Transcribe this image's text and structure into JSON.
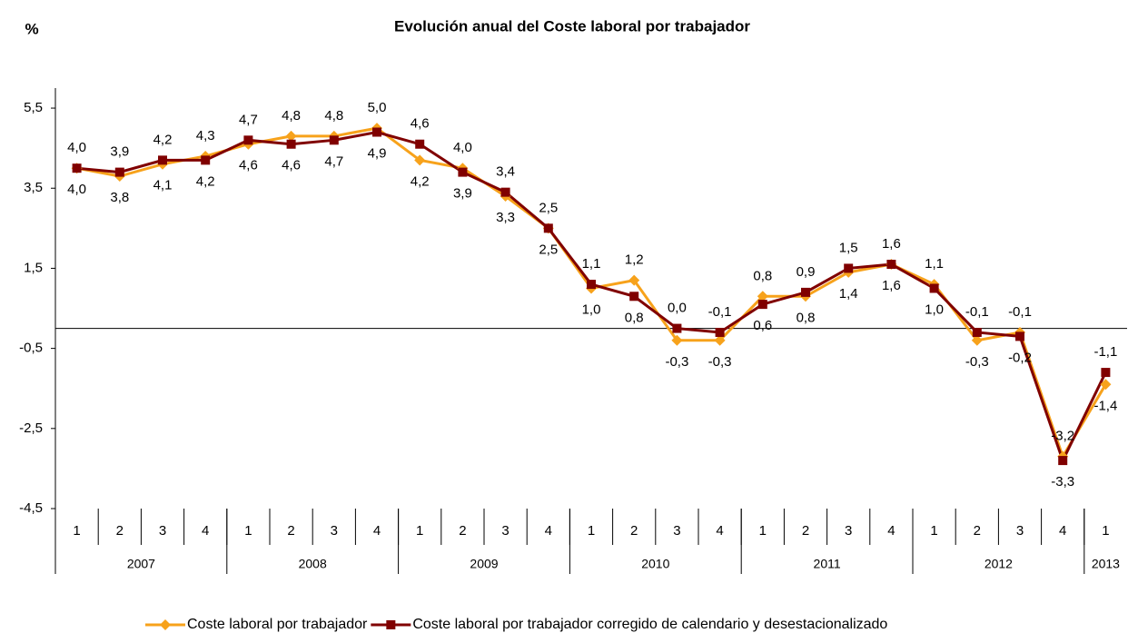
{
  "chart_data": {
    "type": "line",
    "title": "Evolución anual del Coste laboral por trabajador",
    "y_label": "%",
    "groups": [
      {
        "label": "2007",
        "categories": [
          "1",
          "2",
          "3",
          "4"
        ]
      },
      {
        "label": "2008",
        "categories": [
          "1",
          "2",
          "3",
          "4"
        ]
      },
      {
        "label": "2009",
        "categories": [
          "1",
          "2",
          "3",
          "4"
        ]
      },
      {
        "label": "2010",
        "categories": [
          "1",
          "2",
          "3",
          "4"
        ]
      },
      {
        "label": "2011",
        "categories": [
          "1",
          "2",
          "3",
          "4"
        ]
      },
      {
        "label": "2012",
        "categories": [
          "1",
          "2",
          "3",
          "4"
        ]
      },
      {
        "label": "2013",
        "categories": [
          "1"
        ]
      }
    ],
    "series": [
      {
        "name": "Coste laboral por trabajador",
        "color": "#f7a21b",
        "marker": "diamond",
        "values": [
          4.0,
          3.8,
          4.1,
          4.3,
          4.6,
          4.8,
          4.8,
          5.0,
          4.2,
          4.0,
          3.3,
          2.5,
          1.0,
          1.2,
          -0.3,
          -0.3,
          0.8,
          0.8,
          1.4,
          1.6,
          1.1,
          -0.3,
          -0.1,
          -3.2,
          -1.4
        ],
        "value_labels": [
          "4,0",
          "3,8",
          "4,1",
          "4,3",
          "4,6",
          "4,8",
          "4,8",
          "5,0",
          "4,2",
          "4,0",
          "3,3",
          "2,5",
          "1,0",
          "1,2",
          "-0,3",
          "-0,3",
          "0,8",
          "0,8",
          "1,4",
          "1,6",
          "1,1",
          "-0,3",
          "-0,1",
          "-3,2",
          "-1,4"
        ]
      },
      {
        "name": "Coste laboral por trabajador corregido de calendario y desestacionalizado",
        "color": "#800000",
        "marker": "square",
        "values": [
          4.0,
          3.9,
          4.2,
          4.2,
          4.7,
          4.6,
          4.7,
          4.9,
          4.6,
          3.9,
          3.4,
          2.5,
          1.1,
          0.8,
          0.0,
          -0.1,
          0.6,
          0.9,
          1.5,
          1.6,
          1.0,
          -0.1,
          -0.2,
          -3.3,
          -1.1
        ],
        "value_labels": [
          "4,0",
          "3,9",
          "4,2",
          "4,2",
          "4,7",
          "4,6",
          "4,7",
          "4,9",
          "4,6",
          "3,9",
          "3,4",
          "2,5",
          "1,1",
          "0,8",
          "0,0",
          "-0,1",
          "0,6",
          "0,9",
          "1,5",
          "1,6",
          "1,0",
          "-0,1",
          "-0,2",
          "-3,3",
          "-1,1"
        ]
      }
    ],
    "ylim": [
      -4.5,
      6.0
    ],
    "yticks": [
      {
        "value": -4.5,
        "label": "-4,5"
      },
      {
        "value": -2.5,
        "label": "-2,5"
      },
      {
        "value": -0.5,
        "label": "-0,5"
      },
      {
        "value": 1.5,
        "label": "1,5"
      },
      {
        "value": 3.5,
        "label": "3,5"
      },
      {
        "value": 5.5,
        "label": "5,5"
      }
    ],
    "grid": false,
    "legend": "bottom"
  }
}
